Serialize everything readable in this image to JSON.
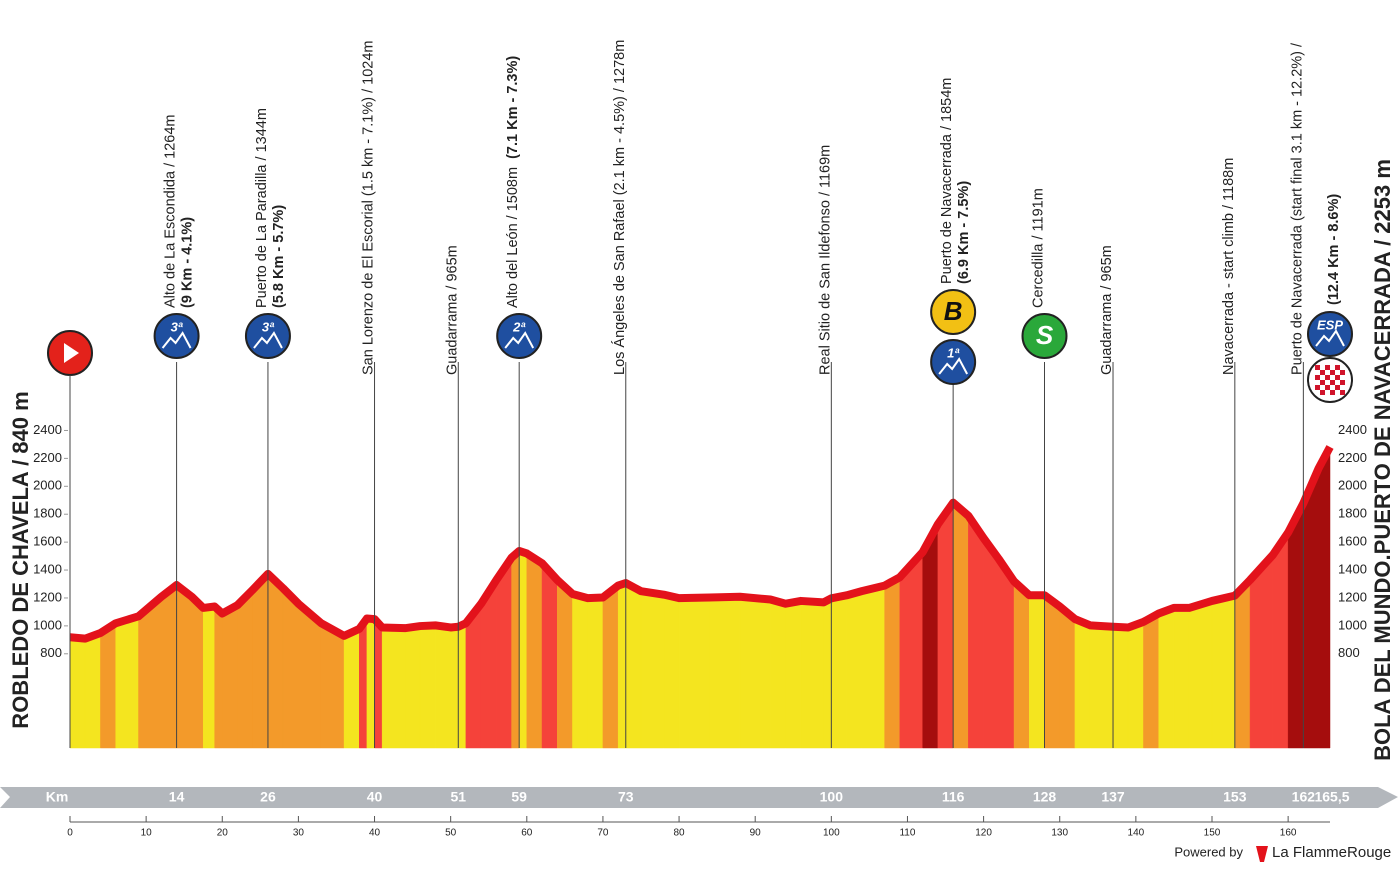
{
  "chart_data": {
    "type": "profile",
    "start_label": "ROBLEDO DE CHAVELA / 840 m",
    "x_label": "Km",
    "x": [
      0,
      2,
      4,
      6,
      9,
      12,
      14,
      16,
      17.5,
      19,
      20,
      22,
      24,
      26,
      28,
      30,
      33,
      36,
      38,
      39,
      40,
      41,
      44,
      46,
      48,
      50,
      51,
      52,
      54,
      56,
      58,
      59,
      60,
      62,
      64,
      66,
      68,
      70,
      72,
      73,
      75,
      78,
      80,
      84,
      88,
      92,
      94,
      96,
      99,
      100,
      102,
      104,
      107,
      109,
      112,
      114,
      116,
      118,
      120,
      122,
      124,
      126,
      128,
      130,
      132,
      134,
      137,
      139,
      141,
      143,
      145,
      147,
      150,
      153,
      155,
      158,
      160,
      162,
      164,
      165.5
    ],
    "values": [
      890,
      880,
      920,
      990,
      1040,
      1180,
      1264,
      1180,
      1100,
      1110,
      1060,
      1120,
      1230,
      1344,
      1240,
      1130,
      990,
      900,
      950,
      1024,
      1020,
      960,
      955,
      970,
      975,
      960,
      965,
      990,
      1130,
      1300,
      1460,
      1508,
      1490,
      1420,
      1300,
      1200,
      1170,
      1175,
      1260,
      1278,
      1220,
      1195,
      1170,
      1175,
      1180,
      1160,
      1130,
      1150,
      1140,
      1169,
      1190,
      1220,
      1260,
      1320,
      1500,
      1700,
      1854,
      1760,
      1600,
      1450,
      1290,
      1191,
      1191,
      1110,
      1020,
      975,
      965,
      960,
      1000,
      1060,
      1100,
      1100,
      1150,
      1188,
      1300,
      1480,
      1640,
      1850,
      2100,
      2253
    ],
    "xlim": [
      0,
      165.5
    ],
    "xticks": [
      0,
      10,
      20,
      30,
      40,
      50,
      60,
      70,
      80,
      90,
      100,
      110,
      120,
      130,
      140,
      150,
      160
    ],
    "ylim": [
      125,
      2475
    ],
    "yticks": [
      800,
      1000,
      1200,
      1400,
      1600,
      1800,
      2000,
      2200,
      2400
    ],
    "gradient_colors": [
      "#f4e51f",
      "#f39a2a",
      "#f5423a",
      "#a50d0d"
    ],
    "line_color": "#e3121b",
    "points": [
      {
        "km": 14,
        "name": "Alto de La Escondida / 1264m",
        "detail": "(9 Km - 4.1%)",
        "icons": [
          "3ª"
        ]
      },
      {
        "km": 26,
        "name": "Puerto de La Paradilla / 1344m",
        "detail": "(5.8 Km - 5.7%)",
        "icons": [
          "3ª"
        ]
      },
      {
        "km": 40,
        "name": "San Lorenzo de El Escorial (1.5 km - 7.1%) / 1024m"
      },
      {
        "km": 51,
        "name": "Guadarrama / 965m"
      },
      {
        "km": 59,
        "name": "Alto del León / 1508m",
        "detail": "(7.1 Km - 7.3%)",
        "detail_inline": true,
        "icons": [
          "2ª"
        ]
      },
      {
        "km": 73,
        "name": "Los Ángeles de San Rafael (2.1 km - 4.5%) / 1278m"
      },
      {
        "km": 100,
        "name": "Real Sitio de San Ildefonso / 1169m"
      },
      {
        "km": 116,
        "name": "Puerto de Navacerrada / 1854m",
        "detail": "(6.9 Km - 7.5%)",
        "icons": [
          "B",
          "1ª"
        ]
      },
      {
        "km": 128,
        "name": "Cercedilla / 1191m",
        "icons": [
          "S"
        ]
      },
      {
        "km": 137,
        "name": "Guadarrama / 965m"
      },
      {
        "km": 153,
        "name": "Navacerrada - start climb / 1188m"
      },
      {
        "km": 162,
        "name": "Puerto de Navacerrada (start final 3.1 km - 12.2%) /"
      }
    ],
    "finish": {
      "km": {
        "value": 165.5,
        "label": "165,5"
      },
      "label": "BOLA DEL MUNDO.PUERTO DE NAVACERRADA / 2253 m",
      "detail": "(12.4 Km - 8.6%)",
      "icons": [
        "ESP"
      ]
    },
    "footer": {
      "powered": "Powered by",
      "brand": "La FlammeRouge"
    }
  }
}
